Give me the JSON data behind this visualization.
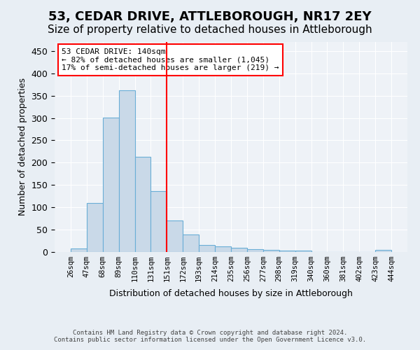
{
  "title": "53, CEDAR DRIVE, ATTLEBOROUGH, NR17 2EY",
  "subtitle": "Size of property relative to detached houses in Attleborough",
  "xlabel": "Distribution of detached houses by size in Attleborough",
  "ylabel": "Number of detached properties",
  "footer_line1": "Contains HM Land Registry data © Crown copyright and database right 2024.",
  "footer_line2": "Contains public sector information licensed under the Open Government Licence v3.0.",
  "bins": [
    "26sqm",
    "47sqm",
    "68sqm",
    "89sqm",
    "110sqm",
    "131sqm",
    "151sqm",
    "172sqm",
    "193sqm",
    "214sqm",
    "235sqm",
    "256sqm",
    "277sqm",
    "298sqm",
    "319sqm",
    "340sqm",
    "360sqm",
    "381sqm",
    "402sqm",
    "423sqm",
    "444sqm"
  ],
  "values": [
    8,
    109,
    301,
    362,
    213,
    136,
    70,
    39,
    15,
    13,
    10,
    7,
    5,
    3,
    3,
    0,
    0,
    0,
    0,
    5
  ],
  "bar_color": "#c9d9e8",
  "bar_edge_color": "#6aaed6",
  "vline_x_index": 5.5,
  "vline_color": "red",
  "annotation_text": "53 CEDAR DRIVE: 140sqm\n← 82% of detached houses are smaller (1,045)\n17% of semi-detached houses are larger (219) →",
  "annotation_box_color": "white",
  "annotation_box_edge_color": "red",
  "ylim": [
    0,
    470
  ],
  "background_color": "#e8eef4",
  "plot_background_color": "#eef2f7",
  "grid_color": "white",
  "title_fontsize": 13,
  "subtitle_fontsize": 11
}
